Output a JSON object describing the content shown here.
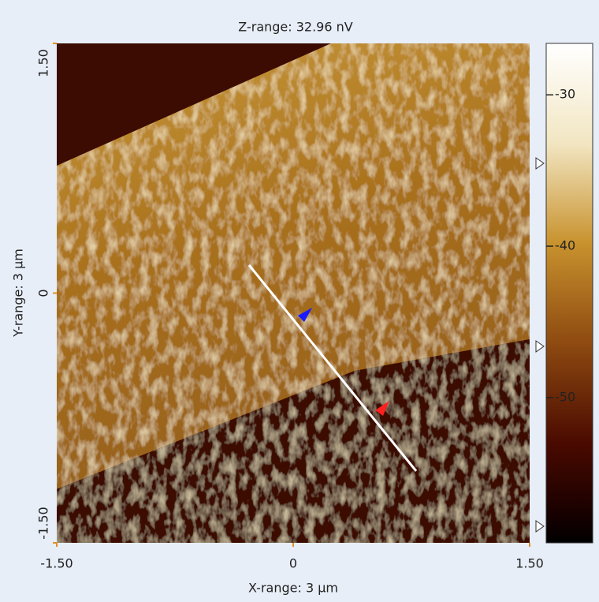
{
  "image": {
    "title": "Z-range: 32.96 nV",
    "x_axis": {
      "label": "X-range: 3 µm",
      "lim": [
        -1.5,
        1.5
      ],
      "ticks": [
        {
          "value": -1.5,
          "label": "-1.50"
        },
        0,
        {
          "value": 1.5,
          "label": "1.50"
        }
      ]
    },
    "y_axis": {
      "label": "Y-range: 3 µm",
      "lim": [
        -1.5,
        1.5
      ],
      "ticks": [
        {
          "value": -1.5,
          "label": "-1.50"
        },
        0,
        {
          "value": 1.5,
          "label": "1.50"
        }
      ]
    },
    "colorbar": {
      "lim": [
        -59.6,
        -26.6
      ],
      "ticks": [
        -30,
        -40,
        -50
      ]
    }
  }
}
